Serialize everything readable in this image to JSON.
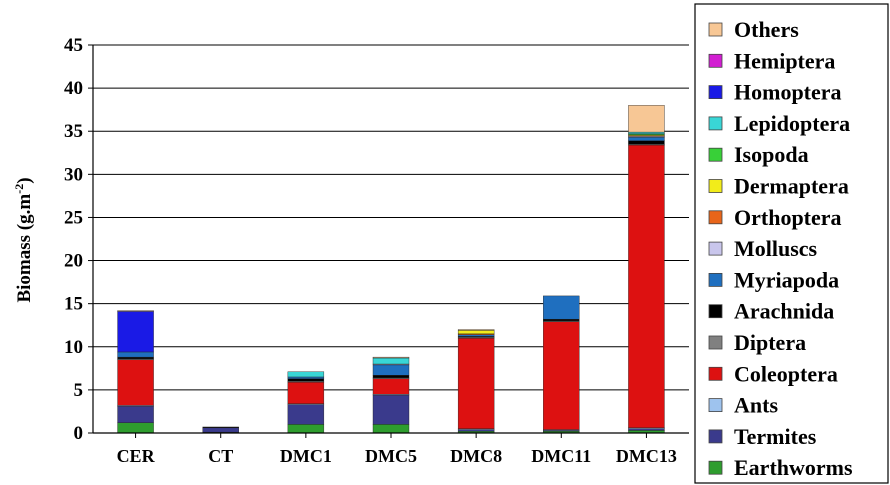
{
  "chart_data": {
    "type": "bar",
    "stacked": true,
    "ylabel": "Biomass (g.m-2)",
    "ylabel_parts": {
      "main": "Biomass (g.m",
      "sup": "-2",
      "close": ")"
    },
    "ylim": [
      0,
      45
    ],
    "yticks": [
      0,
      5,
      10,
      15,
      20,
      25,
      30,
      35,
      40,
      45
    ],
    "grid": "horizontal",
    "legend_position": "right",
    "categories": [
      "CER",
      "CT",
      "DMC1",
      "DMC5",
      "DMC8",
      "DMC11",
      "DMC13"
    ],
    "series": [
      {
        "name": "Earthworms",
        "color": "#2e9d2e",
        "values": [
          1.2,
          0.1,
          1.0,
          1.0,
          0.2,
          0.2,
          0.3
        ]
      },
      {
        "name": "Termites",
        "color": "#3a3a8c",
        "values": [
          1.9,
          0.5,
          2.3,
          3.4,
          0.2,
          0.1,
          0.2
        ]
      },
      {
        "name": "Ants",
        "color": "#9ec3ee",
        "values": [
          0.1,
          0.0,
          0.1,
          0.1,
          0.1,
          0.1,
          0.1
        ]
      },
      {
        "name": "Coleoptera",
        "color": "#dd1111",
        "values": [
          5.3,
          0.0,
          2.5,
          1.8,
          10.5,
          12.5,
          32.8
        ]
      },
      {
        "name": "Diptera",
        "color": "#808080",
        "values": [
          0.1,
          0.0,
          0.1,
          0.1,
          0.1,
          0.1,
          0.1
        ]
      },
      {
        "name": "Arachnida",
        "color": "#000000",
        "values": [
          0.2,
          0.1,
          0.3,
          0.3,
          0.1,
          0.2,
          0.4
        ]
      },
      {
        "name": "Myriapoda",
        "color": "#1f6fbf",
        "values": [
          0.6,
          0.0,
          0.2,
          1.2,
          0.2,
          2.7,
          0.4
        ]
      },
      {
        "name": "Molluscs",
        "color": "#c9c6ec",
        "values": [
          0.0,
          0.0,
          0.0,
          0.1,
          0.0,
          0.0,
          0.1
        ]
      },
      {
        "name": "Orthoptera",
        "color": "#e8651a",
        "values": [
          0.0,
          0.0,
          0.0,
          0.0,
          0.1,
          0.0,
          0.1
        ]
      },
      {
        "name": "Dermaptera",
        "color": "#f2ec1a",
        "values": [
          0.0,
          0.0,
          0.0,
          0.0,
          0.4,
          0.0,
          0.1
        ]
      },
      {
        "name": "Isopoda",
        "color": "#38d038",
        "values": [
          0.0,
          0.0,
          0.0,
          0.0,
          0.0,
          0.0,
          0.1
        ]
      },
      {
        "name": "Lepidoptera",
        "color": "#39d6d6",
        "values": [
          0.0,
          0.0,
          0.6,
          0.7,
          0.0,
          0.0,
          0.2
        ]
      },
      {
        "name": "Homoptera",
        "color": "#1a1ae6",
        "values": [
          4.7,
          0.0,
          0.0,
          0.0,
          0.0,
          0.0,
          0.0
        ]
      },
      {
        "name": "Hemiptera",
        "color": "#d21ed2",
        "values": [
          0.0,
          0.0,
          0.0,
          0.0,
          0.0,
          0.0,
          0.0
        ]
      },
      {
        "name": "Others",
        "color": "#f7c795",
        "values": [
          0.1,
          0.0,
          0.0,
          0.1,
          0.1,
          0.0,
          3.1
        ]
      }
    ]
  }
}
